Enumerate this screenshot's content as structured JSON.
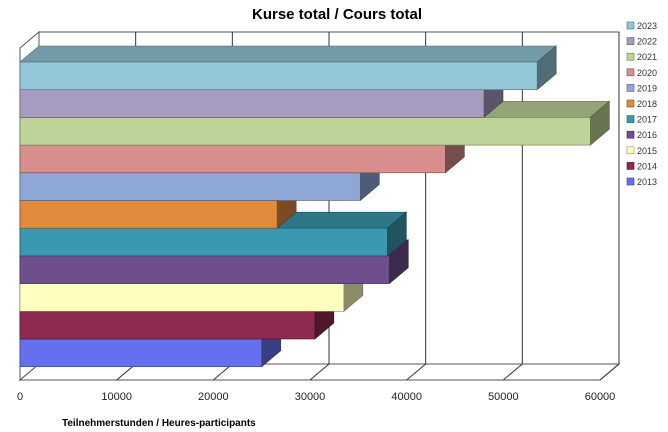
{
  "chart_data": {
    "type": "bar",
    "orientation": "horizontal",
    "three_d": true,
    "title": "Kurse total  / Cours total",
    "xlabel": "Teilnehmerstunden / Heures-participants",
    "ylabel": "",
    "xlim": [
      0,
      60000
    ],
    "x_ticks": [
      "0",
      "10000",
      "20000",
      "30000",
      "40000",
      "50000",
      "60000"
    ],
    "grid": "vertical",
    "legend_position": "right",
    "series": [
      {
        "name": "2023",
        "value": 53500,
        "color": "#93c6d6"
      },
      {
        "name": "2022",
        "value": 48000,
        "color": "#a89bc0"
      },
      {
        "name": "2021",
        "value": 59000,
        "color": "#bcd497"
      },
      {
        "name": "2020",
        "value": 44000,
        "color": "#d98e8e"
      },
      {
        "name": "2019",
        "value": 35200,
        "color": "#8fa7d4"
      },
      {
        "name": "2018",
        "value": 26600,
        "color": "#e08a3c"
      },
      {
        "name": "2017",
        "value": 38000,
        "color": "#3a98b0"
      },
      {
        "name": "2016",
        "value": 38200,
        "color": "#6e4f8c"
      },
      {
        "name": "2015",
        "value": 33500,
        "color": "#ffffc0"
      },
      {
        "name": "2014",
        "value": 30500,
        "color": "#8e2950"
      },
      {
        "name": "2013",
        "value": 25000,
        "color": "#6670ee"
      }
    ]
  }
}
